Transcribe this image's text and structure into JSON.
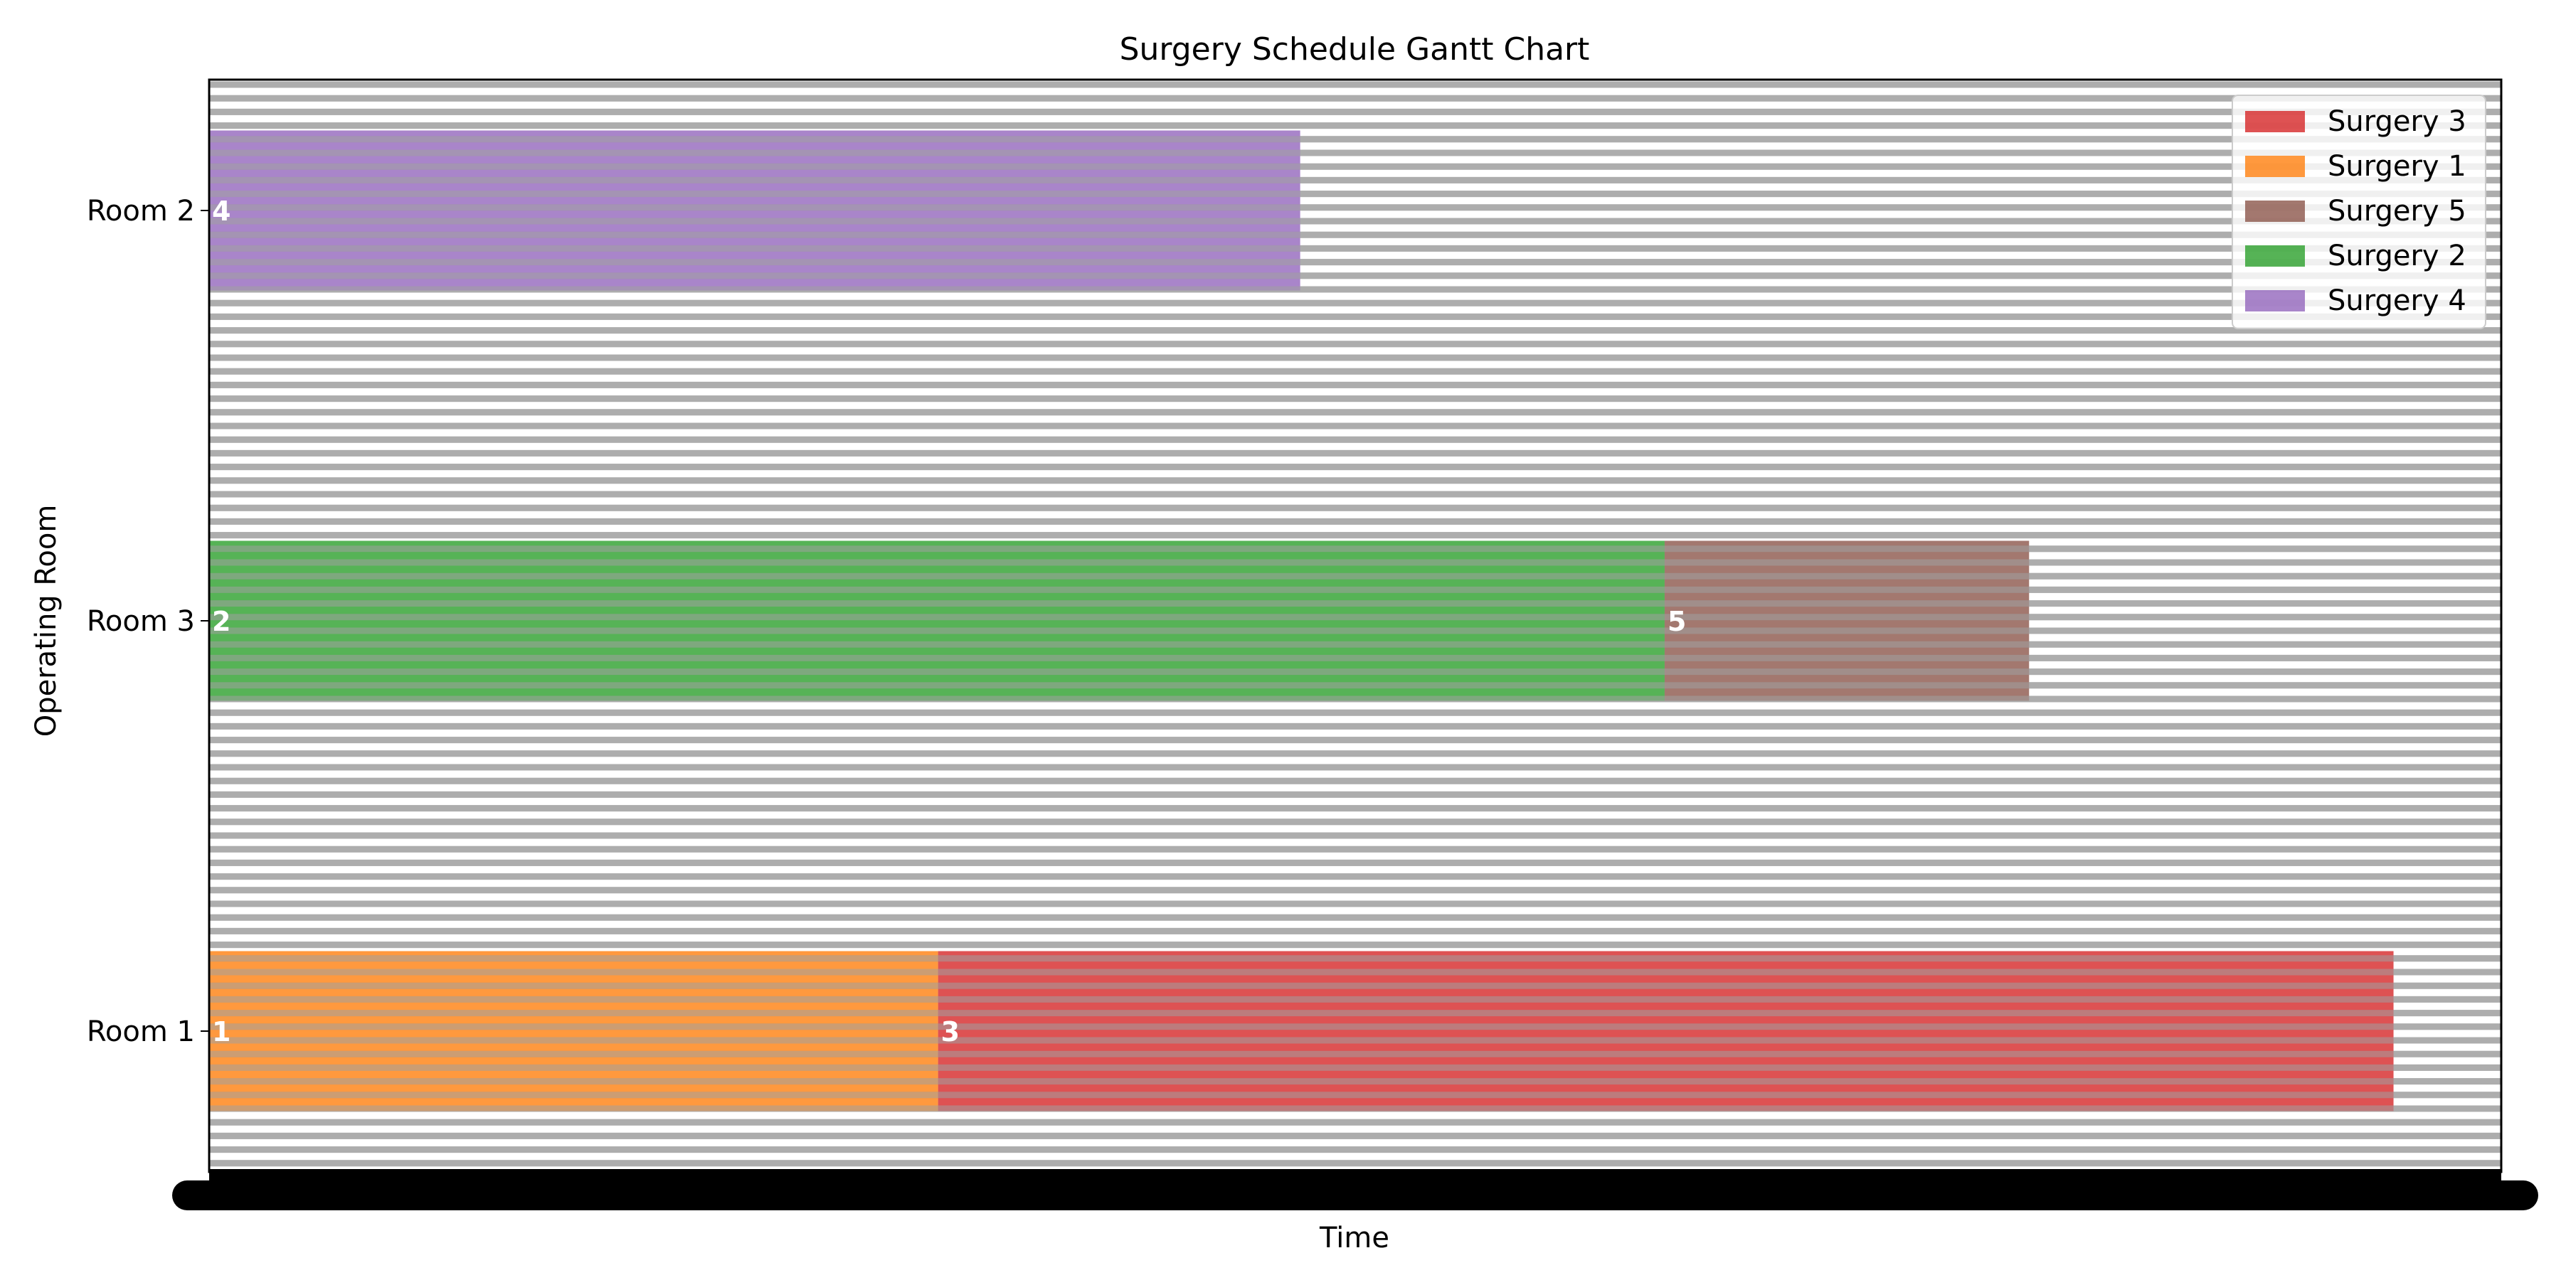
{
  "chart_data": {
    "type": "gantt",
    "title": "Surgery Schedule Gantt Chart",
    "xlabel": "Time",
    "ylabel": "Operating Room",
    "rows": [
      "Room 1",
      "Room 3",
      "Room 2"
    ],
    "xlim": [
      0,
      1
    ],
    "grid": true,
    "legend_position": "top-right",
    "tasks": [
      {
        "name": "Surgery 3",
        "label": "3",
        "room": "Room 1",
        "start": 0.318,
        "end": 0.953,
        "color": "#d62728"
      },
      {
        "name": "Surgery 1",
        "label": "1",
        "room": "Room 1",
        "start": 0.0,
        "end": 0.318,
        "color": "#ff7f0e"
      },
      {
        "name": "Surgery 5",
        "label": "5",
        "room": "Room 3",
        "start": 0.635,
        "end": 0.794,
        "color": "#8c564b"
      },
      {
        "name": "Surgery 2",
        "label": "2",
        "room": "Room 3",
        "start": 0.0,
        "end": 0.635,
        "color": "#2ca02c"
      },
      {
        "name": "Surgery 4",
        "label": "4",
        "room": "Room 2",
        "start": 0.0,
        "end": 0.476,
        "color": "#9467bd"
      }
    ],
    "legend": [
      "Surgery 3",
      "Surgery 1",
      "Surgery 5",
      "Surgery 2",
      "Surgery 4"
    ]
  }
}
